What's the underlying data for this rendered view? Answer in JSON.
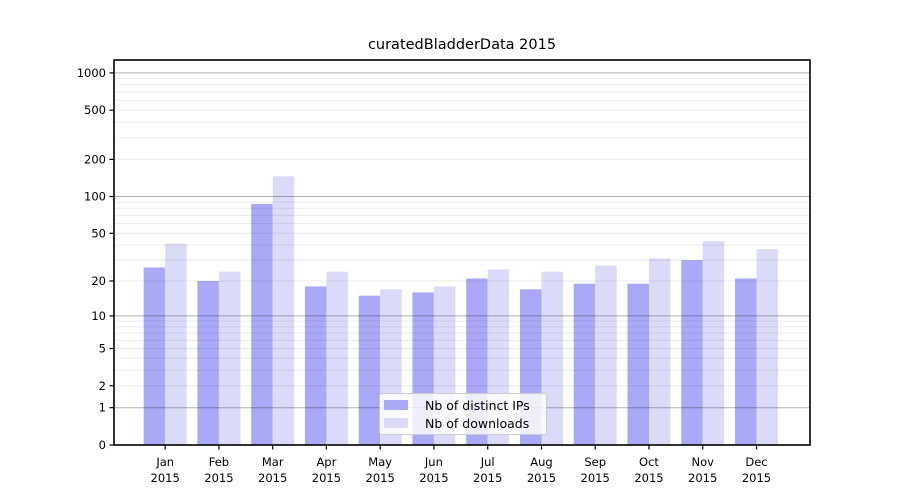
{
  "chart_data": {
    "type": "bar",
    "title": "curatedBladderData 2015",
    "categories": [
      "Jan",
      "Feb",
      "Mar",
      "Apr",
      "May",
      "Jun",
      "Jul",
      "Aug",
      "Sep",
      "Oct",
      "Nov",
      "Dec"
    ],
    "category_second_line": "2015",
    "series": [
      {
        "name": "Nb of distinct IPs",
        "color": "#a9a9f7",
        "values": [
          26,
          20,
          87,
          18,
          15,
          16,
          21,
          17,
          19,
          19,
          30,
          21
        ]
      },
      {
        "name": "Nb of downloads",
        "color": "#dbdbf9",
        "values": [
          41,
          24,
          146,
          24,
          17,
          18,
          25,
          24,
          27,
          31,
          43,
          37
        ]
      }
    ],
    "xlabel": "",
    "ylabel": "",
    "y_axis": {
      "scale": "log1p",
      "tick_values": [
        0,
        1,
        2,
        5,
        10,
        20,
        50,
        100,
        200,
        500,
        1000
      ],
      "major_grid_values": [
        1,
        10,
        100,
        1000
      ],
      "range": [
        0,
        1000
      ]
    },
    "grid": "on",
    "legend_position": "inside-bottom-center"
  },
  "colors": {
    "background": "#ffffff",
    "spine": "#000000",
    "major_grid": "rgba(0,0,0,0.30)",
    "minor_grid": "rgba(0,0,0,0.08)",
    "tick_text": "#000000"
  }
}
